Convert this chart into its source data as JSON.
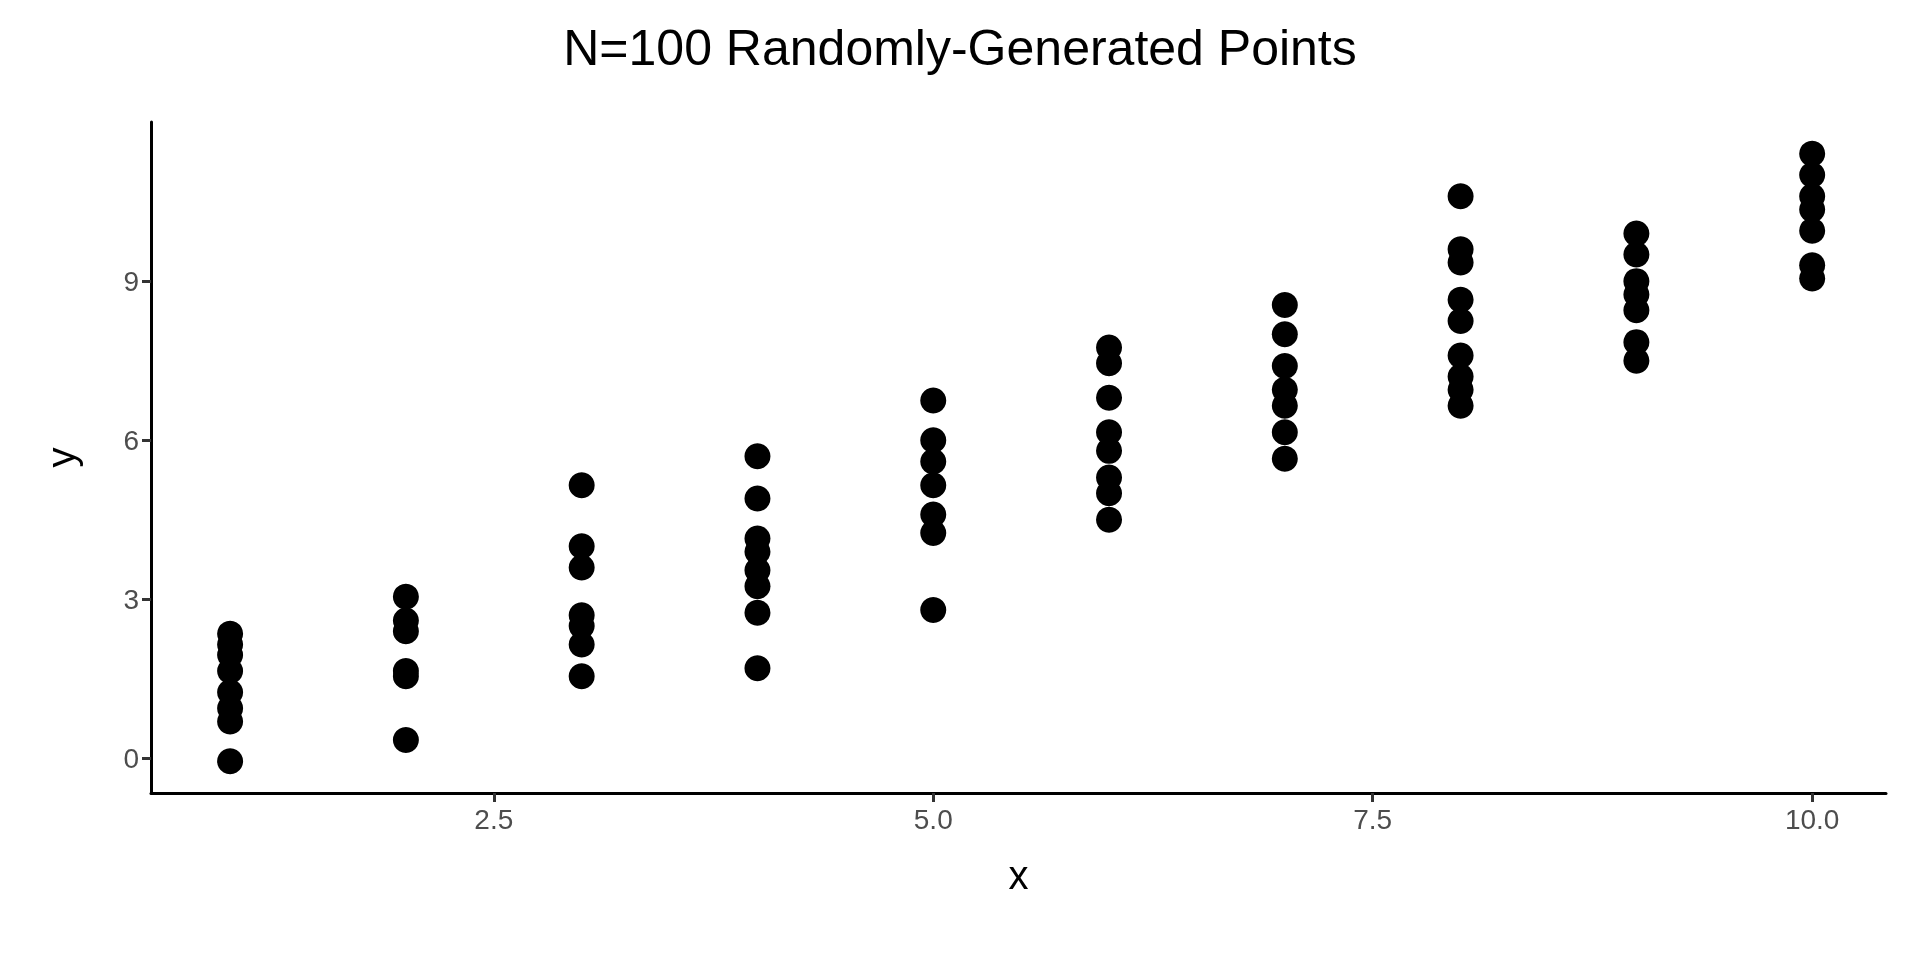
{
  "chart_data": {
    "type": "scatter",
    "title": "N=100 Randomly-Generated Points",
    "xlabel": "x",
    "ylabel": "y",
    "x": [
      1,
      1,
      1,
      1,
      1,
      1,
      1,
      1,
      2,
      2,
      2,
      2,
      2,
      2,
      3,
      3,
      3,
      3,
      3,
      3,
      3,
      4,
      4,
      4,
      4,
      4,
      4,
      4,
      4,
      5,
      5,
      5,
      5,
      5,
      5,
      5,
      6,
      6,
      6,
      6,
      6,
      6,
      6,
      6,
      7,
      7,
      7,
      7,
      7,
      7,
      7,
      8,
      8,
      8,
      8,
      8,
      8,
      8,
      8,
      8,
      9,
      9,
      9,
      9,
      9,
      9,
      9,
      10,
      10,
      10,
      10,
      10,
      10,
      10
    ],
    "series": [
      {
        "color": "#000000",
        "values": [
          -0.05,
          0.7,
          0.95,
          1.25,
          1.65,
          1.95,
          2.15,
          2.35,
          0.35,
          1.55,
          1.65,
          2.4,
          2.6,
          3.05,
          1.55,
          2.15,
          2.5,
          2.7,
          3.6,
          4.0,
          5.15,
          1.7,
          2.75,
          3.25,
          3.55,
          3.9,
          4.15,
          4.9,
          5.7,
          2.8,
          4.25,
          4.6,
          5.15,
          5.6,
          6.0,
          6.75,
          4.5,
          5.0,
          5.3,
          5.8,
          6.15,
          6.8,
          7.45,
          7.75,
          5.65,
          6.15,
          6.65,
          6.95,
          7.4,
          8.0,
          8.55,
          6.65,
          6.95,
          7.2,
          7.6,
          8.25,
          8.65,
          9.35,
          9.6,
          10.6,
          7.5,
          7.85,
          8.45,
          8.75,
          9.0,
          9.5,
          9.9,
          9.05,
          9.3,
          9.95,
          10.35,
          10.6,
          11.0,
          11.4
        ]
      }
    ],
    "xlim": [
      0.55,
      10.42
    ],
    "xticks": [
      2.5,
      {
        "value": 5,
        "label": "5.0"
      },
      7.5,
      {
        "value": 10,
        "label": "10.0"
      }
    ],
    "ylim": [
      -0.65,
      12.0
    ],
    "yticks": [
      0,
      3,
      6,
      9
    ],
    "marker": "circle",
    "grid": false
  }
}
